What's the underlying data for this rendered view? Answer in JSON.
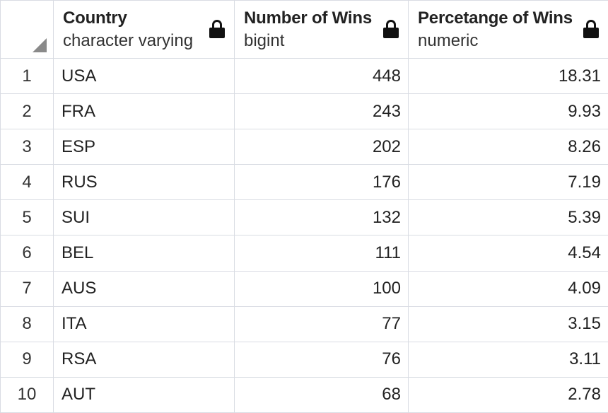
{
  "columns": [
    {
      "name": "Country",
      "type": "character varying"
    },
    {
      "name": "Number of Wins",
      "type": "bigint"
    },
    {
      "name": "Percetange of Wins",
      "type": "numeric"
    }
  ],
  "rows": [
    {
      "num": "1",
      "country": "USA",
      "wins": "448",
      "pct": "18.31"
    },
    {
      "num": "2",
      "country": "FRA",
      "wins": "243",
      "pct": "9.93"
    },
    {
      "num": "3",
      "country": "ESP",
      "wins": "202",
      "pct": "8.26"
    },
    {
      "num": "4",
      "country": "RUS",
      "wins": "176",
      "pct": "7.19"
    },
    {
      "num": "5",
      "country": "SUI",
      "wins": "132",
      "pct": "5.39"
    },
    {
      "num": "6",
      "country": "BEL",
      "wins": "111",
      "pct": "4.54"
    },
    {
      "num": "7",
      "country": "AUS",
      "wins": "100",
      "pct": "4.09"
    },
    {
      "num": "8",
      "country": "ITA",
      "wins": "77",
      "pct": "3.15"
    },
    {
      "num": "9",
      "country": "RSA",
      "wins": "76",
      "pct": "3.11"
    },
    {
      "num": "10",
      "country": "AUT",
      "wins": "68",
      "pct": "2.78"
    }
  ]
}
